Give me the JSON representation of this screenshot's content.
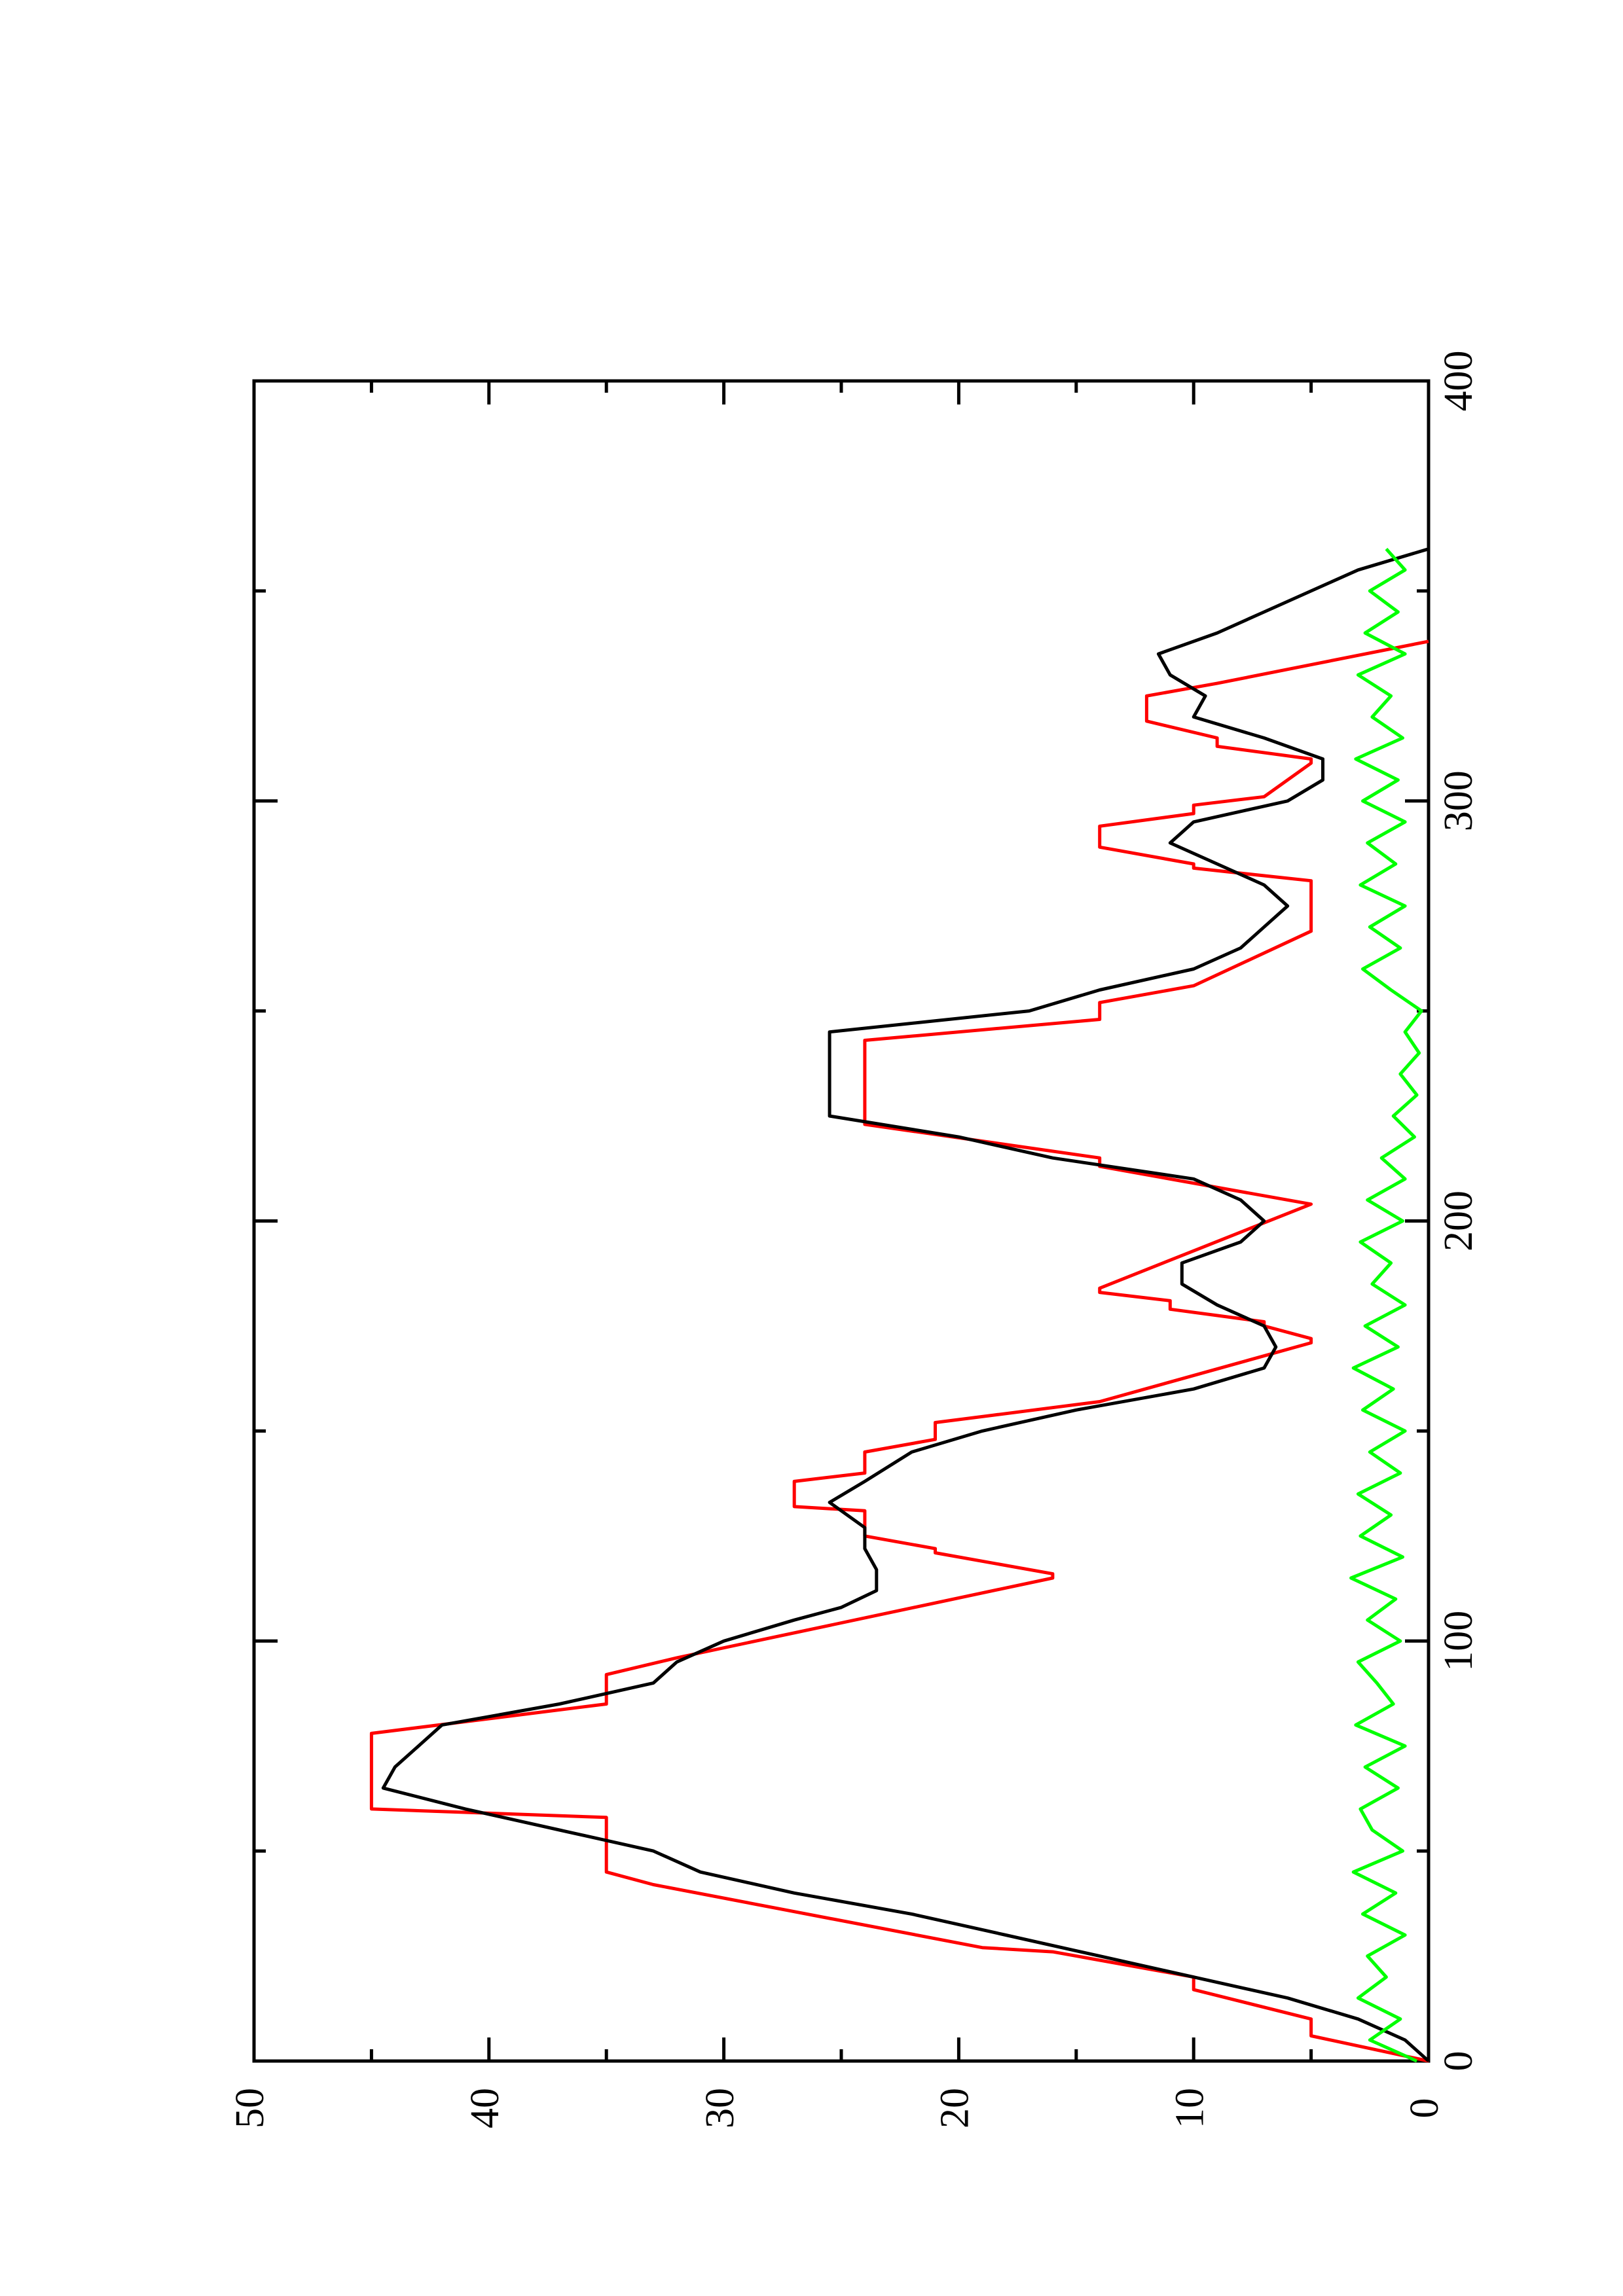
{
  "chart_data": {
    "type": "line",
    "xlim": [
      0,
      400
    ],
    "xticks": [
      0,
      100,
      200,
      300,
      400
    ],
    "xminorticks": [
      50,
      150,
      250,
      350
    ],
    "ylim": [
      0,
      50
    ],
    "yticks": [
      0,
      10,
      20,
      30,
      40,
      50
    ],
    "series": [
      {
        "color": "#ff0000",
        "x": [
          0,
          6,
          10,
          17,
          20,
          26,
          27,
          42,
          45,
          58,
          60,
          78,
          85,
          92,
          96,
          115,
          116,
          121,
          122,
          125,
          131,
          132,
          138,
          140,
          145,
          148,
          152,
          157,
          171,
          172,
          175,
          176,
          179,
          181,
          183,
          184,
          204,
          213,
          215,
          223,
          243,
          248,
          252,
          256,
          269,
          281,
          284,
          285,
          289,
          294,
          297,
          299,
          301,
          309,
          310,
          313,
          315,
          319,
          325,
          328,
          338
        ],
        "values": [
          0,
          5,
          5,
          10,
          10,
          16,
          19,
          33,
          35,
          35,
          45,
          45,
          35,
          35,
          32,
          16,
          16,
          21,
          21,
          24,
          24,
          27,
          27,
          24,
          24,
          21,
          21,
          14,
          5,
          5,
          7,
          7,
          11,
          11,
          14,
          14,
          5,
          14,
          14,
          24,
          24,
          14,
          14,
          10,
          5,
          5,
          10,
          10,
          14,
          14,
          10,
          10,
          7,
          5,
          5,
          9,
          9,
          12,
          12,
          9,
          0
        ]
      },
      {
        "color": "#000000",
        "x": [
          0,
          5,
          10,
          15,
          20,
          25,
          30,
          35,
          40,
          45,
          50,
          55,
          60,
          65,
          70,
          75,
          80,
          85,
          90,
          95,
          100,
          105,
          108,
          112,
          117,
          122,
          127,
          133,
          138,
          145,
          150,
          155,
          160,
          165,
          170,
          175,
          180,
          185,
          190,
          195,
          200,
          205,
          210,
          215,
          220,
          225,
          230,
          240,
          245,
          250,
          255,
          260,
          265,
          270,
          275,
          280,
          285,
          290,
          295,
          300,
          305,
          310,
          315,
          320,
          325,
          330,
          335,
          340,
          345,
          350,
          355,
          360,
          364
        ],
        "values": [
          0,
          1,
          3,
          6,
          10,
          14,
          18,
          22,
          27,
          31,
          33,
          37,
          41,
          44.5,
          44,
          43,
          42,
          37,
          33,
          32,
          30,
          27,
          25,
          23.5,
          23.5,
          24,
          24,
          25.5,
          24,
          22,
          19,
          15,
          10,
          7,
          6.5,
          7,
          9,
          10.5,
          10.5,
          8,
          7,
          8,
          10,
          16,
          20,
          25.5,
          25.5,
          25.5,
          25.5,
          17,
          14,
          10,
          8,
          7,
          6,
          7,
          9,
          11,
          10,
          6,
          4.5,
          4.5,
          7,
          10,
          9.5,
          11,
          11.5,
          9,
          7,
          5,
          3,
          0,
          0
        ]
      },
      {
        "color": "#00ff00",
        "x": [
          0,
          5,
          10,
          15,
          20,
          25,
          30,
          35,
          40,
          45,
          50,
          55,
          60,
          65,
          70,
          75,
          80,
          85,
          90,
          95,
          100,
          105,
          110,
          115,
          120,
          125,
          130,
          135,
          140,
          145,
          150,
          155,
          160,
          165,
          170,
          175,
          180,
          185,
          190,
          195,
          200,
          205,
          210,
          215,
          220,
          225,
          230,
          235,
          240,
          245,
          250,
          255,
          260,
          265,
          270,
          275,
          280,
          285,
          290,
          295,
          300,
          305,
          310,
          315,
          320,
          325,
          330,
          335,
          340,
          345,
          350,
          355,
          360
        ],
        "values": [
          0.5,
          2.5,
          1.2,
          3.0,
          1.8,
          2.6,
          1.0,
          2.8,
          1.4,
          3.2,
          1.1,
          2.4,
          2.9,
          1.3,
          2.7,
          1.0,
          3.1,
          1.5,
          2.2,
          3.0,
          1.2,
          2.6,
          1.4,
          3.3,
          1.1,
          2.9,
          1.6,
          3.0,
          1.2,
          2.5,
          1.0,
          2.8,
          1.5,
          3.2,
          1.3,
          2.7,
          1.0,
          2.4,
          1.6,
          2.9,
          1.1,
          2.6,
          1.0,
          2.0,
          0.6,
          1.5,
          0.5,
          1.2,
          0.4,
          1.0,
          0.3,
          1.6,
          2.8,
          1.2,
          2.5,
          1.0,
          2.9,
          1.4,
          2.6,
          1.0,
          2.8,
          1.3,
          3.1,
          1.1,
          2.4,
          1.6,
          3.0,
          1.0,
          2.7,
          1.3,
          2.5,
          1.0,
          1.8
        ]
      }
    ]
  }
}
